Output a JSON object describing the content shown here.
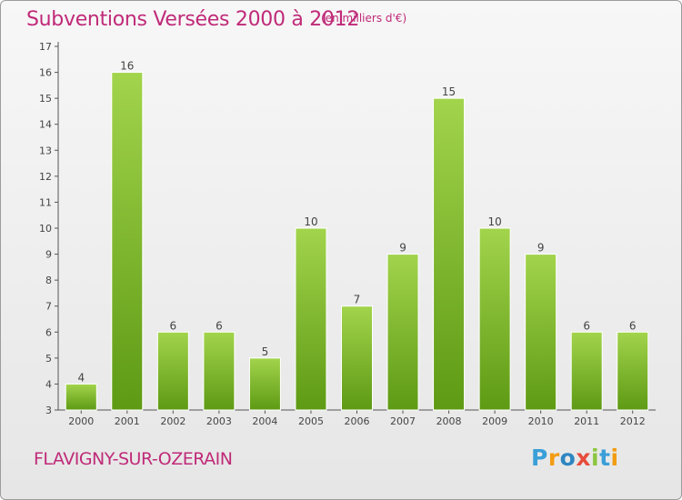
{
  "chart_data": {
    "type": "bar",
    "title": "Subventions Versées 2000 à 2012",
    "subtitle": "(en milliers d'€)",
    "categories": [
      "2000",
      "2001",
      "2002",
      "2003",
      "2004",
      "2005",
      "2006",
      "2007",
      "2008",
      "2009",
      "2010",
      "2011",
      "2012"
    ],
    "values": [
      4,
      16,
      6,
      6,
      5,
      10,
      7,
      9,
      15,
      10,
      9,
      6,
      6
    ],
    "y_ticks": [
      3,
      4,
      5,
      6,
      7,
      8,
      9,
      10,
      11,
      12,
      13,
      14,
      15,
      16,
      17
    ],
    "ylim": [
      3,
      17
    ],
    "grid": false,
    "bar_color_top": "#a2d44c",
    "bar_color_bottom": "#5e9a14"
  },
  "footer": {
    "place": "FLAVIGNY-SUR-OZERAIN",
    "logo_letters": [
      "P",
      "r",
      "o",
      "x",
      "i",
      "t",
      "i"
    ],
    "logo_colors": [
      "#3a9fd8",
      "#f39c12",
      "#2e86c1",
      "#e74c3c",
      "#8cc63f",
      "#3a9fd8",
      "#f39c12"
    ]
  },
  "colors": {
    "title": "#c02a78",
    "axis": "#555555"
  }
}
